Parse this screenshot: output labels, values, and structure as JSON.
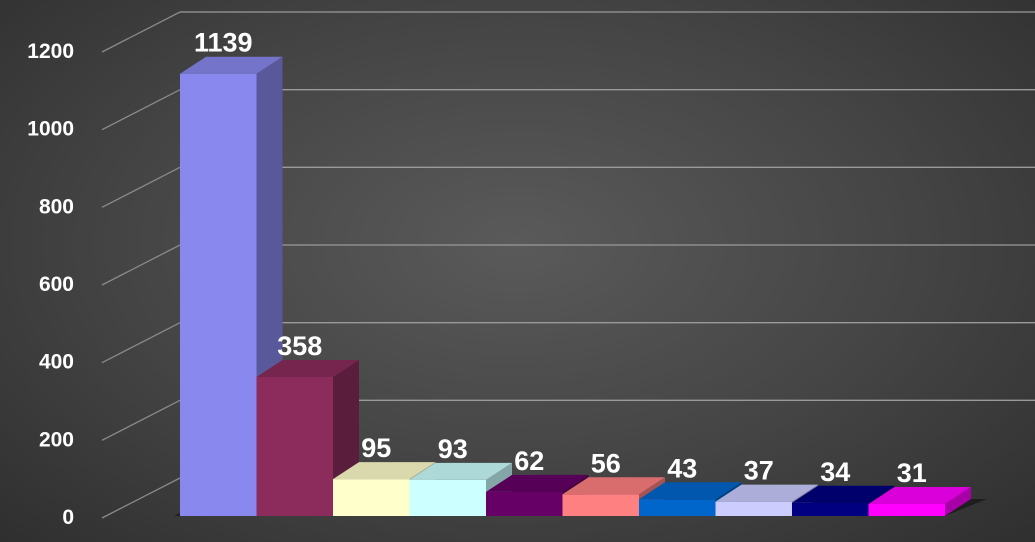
{
  "chart_data": {
    "type": "bar",
    "three_d": true,
    "categories": [
      "",
      "",
      "",
      "",
      "",
      "",
      "",
      "",
      "",
      ""
    ],
    "values": [
      1139,
      358,
      95,
      93,
      62,
      56,
      43,
      37,
      34,
      31
    ],
    "colors": [
      "#8888ee",
      "#8b2c5c",
      "#ffffcc",
      "#ccffff",
      "#660066",
      "#ff8080",
      "#0066cc",
      "#ccccff",
      "#000080",
      "#ff00ff"
    ],
    "data_labels": [
      "1139",
      "358",
      "95",
      "93",
      "62",
      "56",
      "43",
      "37",
      "34",
      "31"
    ],
    "yticks": [
      0,
      200,
      400,
      600,
      800,
      1000,
      1200
    ],
    "ytick_labels": [
      "0",
      "200",
      "400",
      "600",
      "800",
      "1000",
      "1200"
    ],
    "ylim": [
      0,
      1200
    ],
    "grid": true,
    "legend": "none",
    "background": "#444444"
  }
}
